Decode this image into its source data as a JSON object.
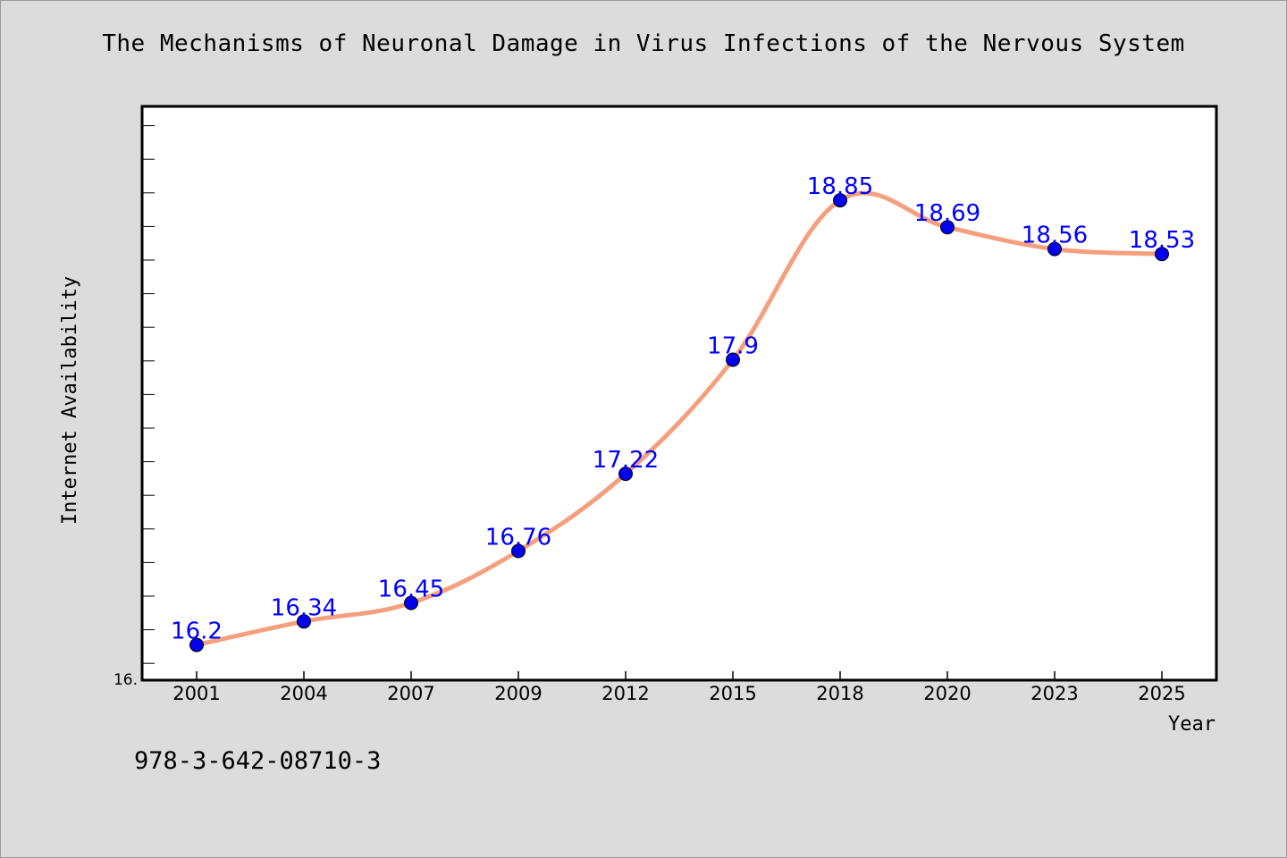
{
  "chart_data": {
    "type": "line",
    "title": "The Mechanisms of Neuronal Damage in Virus Infections of the Nervous System",
    "xlabel": "Year",
    "ylabel": "Internet Availability",
    "categories": [
      "2001",
      "2004",
      "2007",
      "2009",
      "2012",
      "2015",
      "2018",
      "2020",
      "2023",
      "2025"
    ],
    "series": [
      {
        "values": [
          16.2,
          16.34,
          16.45,
          16.76,
          17.22,
          17.9,
          18.85,
          18.69,
          18.56,
          18.53
        ],
        "labels": [
          "16.2",
          "16.34",
          "16.45",
          "16.76",
          "17.22",
          "17.9",
          "18.85",
          "18.69",
          "18.56",
          "18.53"
        ]
      }
    ],
    "ylim": [
      15.99,
      19.41
    ],
    "y_min_label": "16.",
    "colors": {
      "line": "#f4a07e",
      "marker": "#0000ee",
      "label": "#0000ff"
    },
    "grid": false
  },
  "footer": {
    "isbn": "978-3-642-08710-3"
  }
}
